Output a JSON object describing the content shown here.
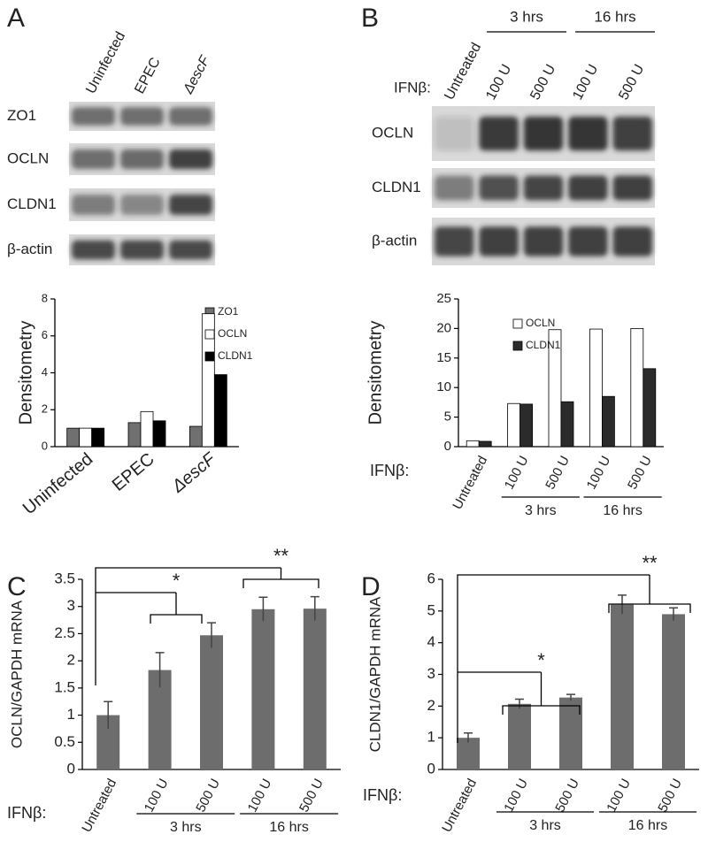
{
  "panels": [
    "A",
    "B",
    "C",
    "D"
  ],
  "blots": [
    {
      "lanes": [
        "Uninfected",
        "EPEC",
        "ΔescF"
      ],
      "rows": [
        "ZO1",
        "OCLN",
        "CLDN1",
        "β-actin"
      ]
    },
    {
      "treatment_label": "IFNβ:",
      "groups": [
        "3 hrs",
        "16 hrs"
      ],
      "lanes": [
        "Untreated",
        "100 U",
        "500 U",
        "100 U",
        "500 U"
      ],
      "rows": [
        "OCLN",
        "CLDN1",
        "β-actin"
      ]
    }
  ],
  "chart_data": [
    {
      "type": "bar",
      "ylabel": "Densitometry",
      "categories": [
        "Uninfected",
        "EPEC",
        "ΔescF"
      ],
      "series": [
        {
          "name": "ZO1",
          "color": "#707070",
          "values": [
            1,
            1.3,
            1.1
          ]
        },
        {
          "name": "OCLN",
          "color": "#ffffff",
          "values": [
            1,
            1.9,
            7.2
          ]
        },
        {
          "name": "CLDN1",
          "color": "#000000",
          "values": [
            1,
            1.4,
            3.9
          ]
        }
      ],
      "ylim": [
        0,
        8
      ],
      "yticks": [
        0,
        2,
        4,
        6,
        8
      ],
      "grid": false
    },
    {
      "type": "bar",
      "ylabel": "Densitometry",
      "xlabel": "IFNβ:",
      "categories": [
        "Untreated",
        "100 U",
        "500 U",
        "100 U",
        "500 U"
      ],
      "groups": [
        "3 hrs",
        "16 hrs"
      ],
      "series": [
        {
          "name": "OCLN",
          "color": "#ffffff",
          "values": [
            1,
            7.3,
            19.8,
            19.9,
            20
          ]
        },
        {
          "name": "CLDN1",
          "color": "#2b2b2b",
          "values": [
            0.9,
            7.2,
            7.6,
            8.5,
            13.2
          ]
        }
      ],
      "ylim": [
        0,
        25
      ],
      "yticks": [
        0,
        5,
        10,
        15,
        20,
        25
      ],
      "grid": false
    },
    {
      "type": "bar",
      "ylabel": "OCLN/GAPDH mRNA",
      "xlabel": "IFNβ:",
      "categories": [
        "Untreated",
        "100 U",
        "500 U",
        "100 U",
        "500 U"
      ],
      "groups": [
        "3 hrs",
        "16 hrs"
      ],
      "color": "#6d6d6d",
      "values": [
        1,
        1.83,
        2.47,
        2.95,
        2.96
      ],
      "errors": [
        0.25,
        0.32,
        0.23,
        0.22,
        0.22
      ],
      "annotations": [
        "*",
        "**"
      ],
      "ylim": [
        0,
        3.5
      ],
      "yticks": [
        0,
        0.5,
        1,
        1.5,
        2,
        2.5,
        3,
        3.5
      ],
      "grid": false
    },
    {
      "type": "bar",
      "ylabel": "CLDN1/GAPDH mRNA",
      "xlabel": "IFNβ:",
      "categories": [
        "Untreated",
        "100 U",
        "500 U",
        "100 U",
        "500 U"
      ],
      "groups": [
        "3 hrs",
        "16 hrs"
      ],
      "color": "#6d6d6d",
      "values": [
        1,
        2.07,
        2.27,
        5.2,
        4.9
      ],
      "errors": [
        0.15,
        0.15,
        0.1,
        0.3,
        0.2
      ],
      "annotations": [
        "*",
        "**"
      ],
      "ylim": [
        0,
        6
      ],
      "yticks": [
        0,
        1,
        2,
        3,
        4,
        5,
        6
      ],
      "grid": false
    }
  ]
}
